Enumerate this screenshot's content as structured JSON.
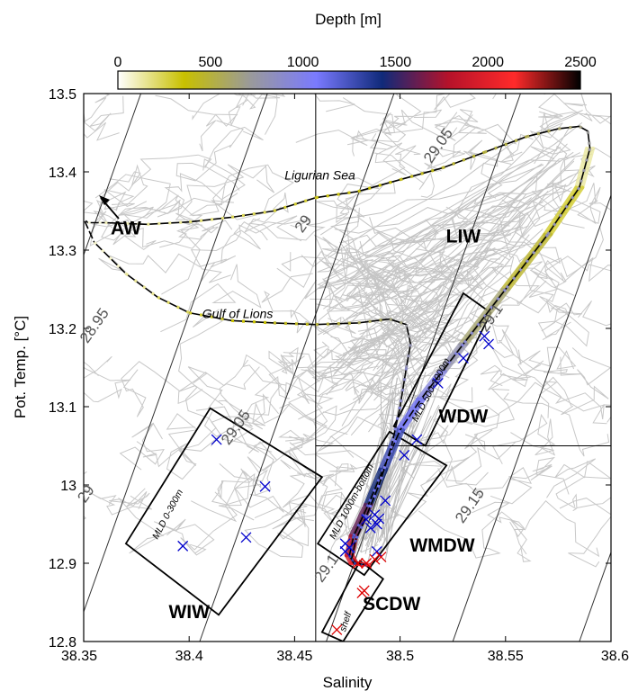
{
  "chart_data": {
    "type": "scatter",
    "xlabel": "Salinity",
    "ylabel": "Pot. Temp. [°C]",
    "xlim": [
      38.35,
      38.6
    ],
    "ylim": [
      12.8,
      13.5
    ],
    "x_ticks": [
      "38.35",
      "38.4",
      "38.45",
      "38.5",
      "38.55",
      "38.6"
    ],
    "x_tick_values": [
      38.35,
      38.4,
      38.45,
      38.5,
      38.55,
      38.6
    ],
    "y_ticks": [
      "12.8",
      "12.9",
      "13",
      "13.1",
      "13.2",
      "13.3",
      "13.4",
      "13.5"
    ],
    "y_tick_values": [
      12.8,
      12.9,
      13.0,
      13.1,
      13.2,
      13.3,
      13.4,
      13.5
    ],
    "colorbar": {
      "label": "Depth [m]",
      "range": [
        0,
        2500
      ],
      "ticks": [
        "0",
        "500",
        "1000",
        "1500",
        "2000",
        "2500"
      ],
      "tick_values": [
        0,
        500,
        1000,
        1500,
        2000,
        2500
      ],
      "colors": [
        "#ffffff",
        "#c8c000",
        "#9a9a9a",
        "#7a7aff",
        "#102a7a",
        "#b5122a",
        "#ff2a2a",
        "#000000"
      ]
    },
    "reference_lines": {
      "salinity": 38.46,
      "temperature": 13.05
    },
    "isopycnals": [
      {
        "label": "28.95",
        "sigma": 28.95
      },
      {
        "label": "29",
        "sigma": 29.0
      },
      {
        "label": "29.05",
        "sigma": 29.05
      },
      {
        "label": "29.1",
        "sigma": 29.1
      },
      {
        "label": "29.15",
        "sigma": 29.15
      }
    ],
    "isopycnal_lines_unlabeled": 3,
    "water_masses": [
      {
        "label": "AW",
        "S": 38.37,
        "T": 13.32
      },
      {
        "label": "LIW",
        "S": 38.53,
        "T": 13.31
      },
      {
        "label": "WDW",
        "S": 38.53,
        "T": 13.08
      },
      {
        "label": "WMDW",
        "S": 38.52,
        "T": 12.915
      },
      {
        "label": "WIW",
        "S": 38.4,
        "T": 12.83
      },
      {
        "label": "SCDW",
        "S": 38.496,
        "T": 12.84
      }
    ],
    "profile_labels": [
      "Ligurian Sea",
      "Gulf of Lions"
    ],
    "boxes": [
      {
        "label": "MLD 0-300m",
        "corners": [
          [
            38.37,
            12.925
          ],
          [
            38.41,
            13.098
          ],
          [
            38.463,
            13.01
          ],
          [
            38.414,
            12.834
          ]
        ]
      },
      {
        "label": "MLD 500-1000m",
        "corners": [
          [
            38.497,
            13.075
          ],
          [
            38.53,
            13.245
          ],
          [
            38.543,
            13.22
          ],
          [
            38.512,
            13.05
          ]
        ]
      },
      {
        "label": "MLD 1000m-bottom",
        "corners": [
          [
            38.461,
            12.925
          ],
          [
            38.495,
            13.068
          ],
          [
            38.522,
            13.025
          ],
          [
            38.483,
            12.885
          ]
        ]
      },
      {
        "label": "shelf",
        "corners": [
          [
            38.463,
            12.812
          ],
          [
            38.481,
            12.903
          ],
          [
            38.492,
            12.88
          ],
          [
            38.473,
            12.8
          ]
        ]
      }
    ],
    "series": [
      {
        "name": "",
        "marker": "x",
        "color": "#0000cc",
        "points": [
          [
            38.413,
            13.058
          ],
          [
            38.436,
            12.998
          ],
          [
            38.427,
            12.933
          ],
          [
            38.397,
            12.922
          ],
          [
            38.54,
            13.19
          ],
          [
            38.542,
            13.18
          ],
          [
            38.53,
            13.162
          ],
          [
            38.518,
            13.13
          ],
          [
            38.508,
            13.058
          ],
          [
            38.502,
            13.038
          ],
          [
            38.493,
            12.98
          ],
          [
            38.488,
            12.962
          ],
          [
            38.484,
            12.956
          ],
          [
            38.49,
            12.957
          ],
          [
            38.489,
            12.95
          ],
          [
            38.486,
            12.945
          ],
          [
            38.474,
            12.925
          ],
          [
            38.476,
            12.92
          ],
          [
            38.474,
            12.915
          ],
          [
            38.489,
            12.915
          ]
        ]
      },
      {
        "name": "",
        "marker": "x",
        "color": "#dd0000",
        "points": [
          [
            38.48,
            12.9
          ],
          [
            38.484,
            12.9
          ],
          [
            38.488,
            12.905
          ],
          [
            38.491,
            12.908
          ],
          [
            38.483,
            12.865
          ],
          [
            38.482,
            12.862
          ],
          [
            38.47,
            12.815
          ]
        ]
      }
    ],
    "profiles": [
      {
        "name": "Ligurian Sea",
        "points": [
          [
            38.35,
            13.34
          ],
          [
            38.352,
            13.335
          ],
          [
            38.36,
            13.335
          ],
          [
            38.38,
            13.333
          ],
          [
            38.4,
            13.336
          ],
          [
            38.42,
            13.342
          ],
          [
            38.44,
            13.35
          ],
          [
            38.46,
            13.367
          ],
          [
            38.48,
            13.375
          ],
          [
            38.5,
            13.39
          ],
          [
            38.52,
            13.405
          ],
          [
            38.54,
            13.425
          ],
          [
            38.56,
            13.445
          ],
          [
            38.575,
            13.455
          ],
          [
            38.585,
            13.458
          ],
          [
            38.589,
            13.452
          ],
          [
            38.59,
            13.43
          ],
          [
            38.585,
            13.38
          ],
          [
            38.57,
            13.32
          ],
          [
            38.55,
            13.25
          ],
          [
            38.53,
            13.18
          ],
          [
            38.52,
            13.145
          ],
          [
            38.51,
            13.11
          ],
          [
            38.5,
            13.07
          ],
          [
            38.492,
            13.02
          ],
          [
            38.485,
            12.975
          ],
          [
            38.478,
            12.935
          ],
          [
            38.476,
            12.91
          ],
          [
            38.478,
            12.9
          ],
          [
            38.484,
            12.898
          ]
        ]
      },
      {
        "name": "Gulf of Lions",
        "points": [
          [
            38.35,
            13.34
          ],
          [
            38.355,
            13.31
          ],
          [
            38.37,
            13.27
          ],
          [
            38.385,
            13.24
          ],
          [
            38.4,
            13.22
          ],
          [
            38.42,
            13.21
          ],
          [
            38.44,
            13.207
          ],
          [
            38.46,
            13.205
          ],
          [
            38.48,
            13.207
          ],
          [
            38.495,
            13.212
          ],
          [
            38.503,
            13.205
          ],
          [
            38.505,
            13.18
          ],
          [
            38.503,
            13.15
          ],
          [
            38.5,
            13.1
          ],
          [
            38.496,
            13.05
          ],
          [
            38.49,
            13.0
          ],
          [
            38.484,
            12.96
          ],
          [
            38.479,
            12.93
          ],
          [
            38.477,
            12.905
          ],
          [
            38.482,
            12.898
          ]
        ]
      }
    ]
  }
}
